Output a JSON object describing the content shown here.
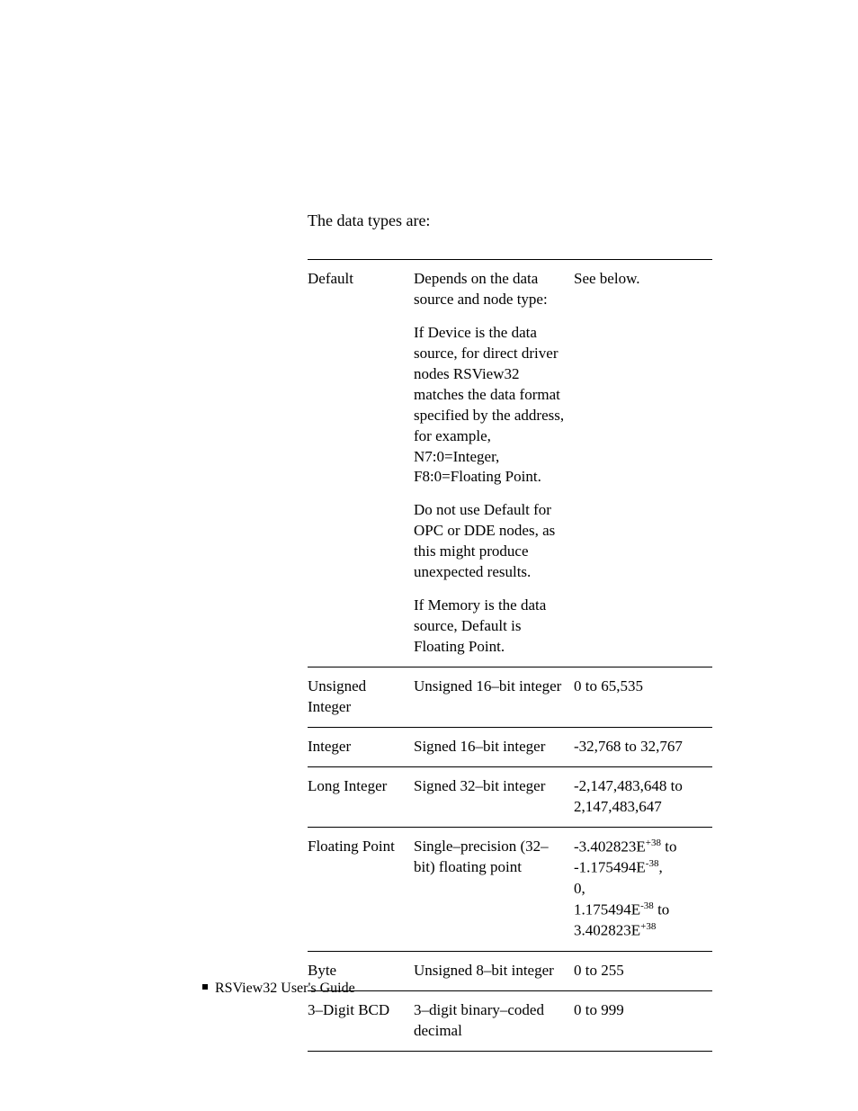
{
  "intro": "The data types are:",
  "table": {
    "rows": [
      {
        "name": "Default",
        "desc_parts": [
          "Depends on the data source and node type:",
          "If Device is the data source, for direct driver nodes RSView32 matches the data format specified by the address, for example, N7:0=Integer, F8:0=Floating Point.",
          "Do not use Default for OPC or DDE nodes, as this might produce unexpected results.",
          "If Memory is the data source, Default is Floating Point."
        ],
        "range": "See below."
      },
      {
        "name": "Unsigned Integer",
        "desc_parts": [
          "Unsigned 16–bit integer"
        ],
        "range": "0 to 65,535"
      },
      {
        "name": "Integer",
        "desc_parts": [
          "Signed 16–bit integer"
        ],
        "range": "-32,768 to 32,767"
      },
      {
        "name": "Long Integer",
        "desc_parts": [
          "Signed 32–bit integer"
        ],
        "range": "-2,147,483,648 to 2,147,483,647"
      },
      {
        "name": "Floating Point",
        "desc_parts": [
          "Single–precision (32–bit) floating point"
        ],
        "range_html": "-3.402823E<sup class='sup'>+38</sup> to -1.175494E<sup class='sup'>-38</sup>,<br>0,<br>1.175494E<sup class='sup'>-38</sup> to 3.402823E<sup class='sup'>+38</sup>"
      },
      {
        "name": "Byte",
        "desc_parts": [
          "Unsigned 8–bit integer"
        ],
        "range": "0 to 255"
      },
      {
        "name": "3–Digit BCD",
        "desc_parts": [
          "3–digit binary–coded decimal"
        ],
        "range": "0 to 999"
      }
    ]
  },
  "footer": "RSView32  User's Guide"
}
